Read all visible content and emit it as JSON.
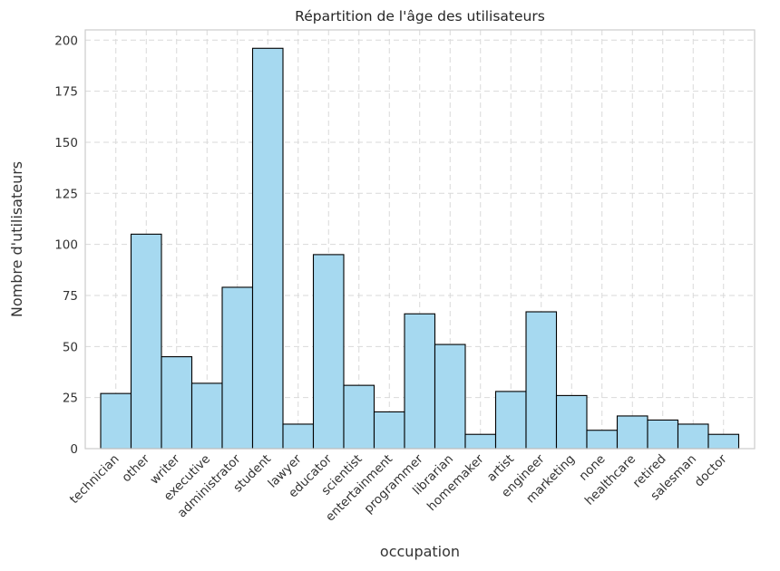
{
  "chart_data": {
    "type": "bar",
    "title": "Répartition de l'âge des utilisateurs",
    "xlabel": "occupation",
    "ylabel": "Nombre d'utilisateurs",
    "categories": [
      "technician",
      "other",
      "writer",
      "executive",
      "administrator",
      "student",
      "lawyer",
      "educator",
      "scientist",
      "entertainment",
      "programmer",
      "librarian",
      "homemaker",
      "artist",
      "engineer",
      "marketing",
      "none",
      "healthcare",
      "retired",
      "salesman",
      "doctor"
    ],
    "values": [
      27,
      105,
      45,
      32,
      79,
      196,
      12,
      95,
      31,
      18,
      66,
      51,
      7,
      28,
      67,
      26,
      9,
      16,
      14,
      12,
      7
    ],
    "ylim": [
      0,
      205
    ],
    "yticks": [
      0,
      25,
      50,
      75,
      100,
      125,
      150,
      175,
      200
    ],
    "grid": true,
    "bar_color": "#a6d9f0",
    "edge_color": "#000000"
  }
}
